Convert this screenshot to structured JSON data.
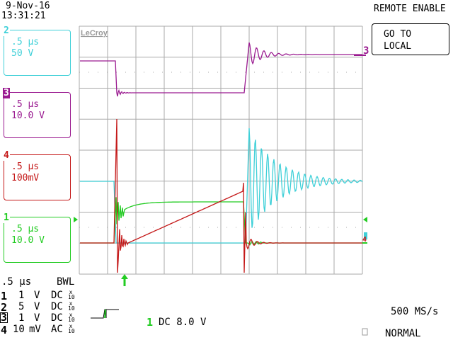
{
  "header": {
    "date": "9-Nov-16",
    "time": "13:31:21",
    "remote_status": "REMOTE ENABLE",
    "go_to_local_line1": "GO TO",
    "go_to_local_line2": "LOCAL"
  },
  "brand": "LeCroy",
  "channel_boxes": [
    {
      "num": "2",
      "timebase": ".5 µs",
      "scale": "50 V",
      "color": "#3fd0d8"
    },
    {
      "num": "3",
      "timebase": ".5 µs",
      "scale": "10.0 V",
      "color": "#9a1a90"
    },
    {
      "num": "4",
      "timebase": ".5 µs",
      "scale": "100mV",
      "color": "#c41818"
    },
    {
      "num": "1",
      "timebase": ".5 µs",
      "scale": "10.0 V",
      "color": "#22cc22"
    }
  ],
  "trace_markers": {
    "ch3": "3",
    "ch4": "4"
  },
  "timebase": {
    "value": ".5 µs",
    "bwl": "BWL"
  },
  "channel_settings": [
    {
      "num": "1",
      "volts": "1",
      "unit": "V",
      "coupling": "DC",
      "probe": "x 10"
    },
    {
      "num": "2",
      "volts": "5",
      "unit": "V",
      "coupling": "DC",
      "probe": "x 10"
    },
    {
      "num": "3",
      "volts": "1",
      "unit": "V",
      "coupling": "DC",
      "probe": "x 10"
    },
    {
      "num": "4",
      "volts": "10",
      "unit": "mV",
      "coupling": "AC",
      "probe": "x 10"
    }
  ],
  "trigger": {
    "source": "1",
    "coupling_level": "DC 8.0 V",
    "mode": "NORMAL"
  },
  "sample_rate": "500 MS/s"
}
